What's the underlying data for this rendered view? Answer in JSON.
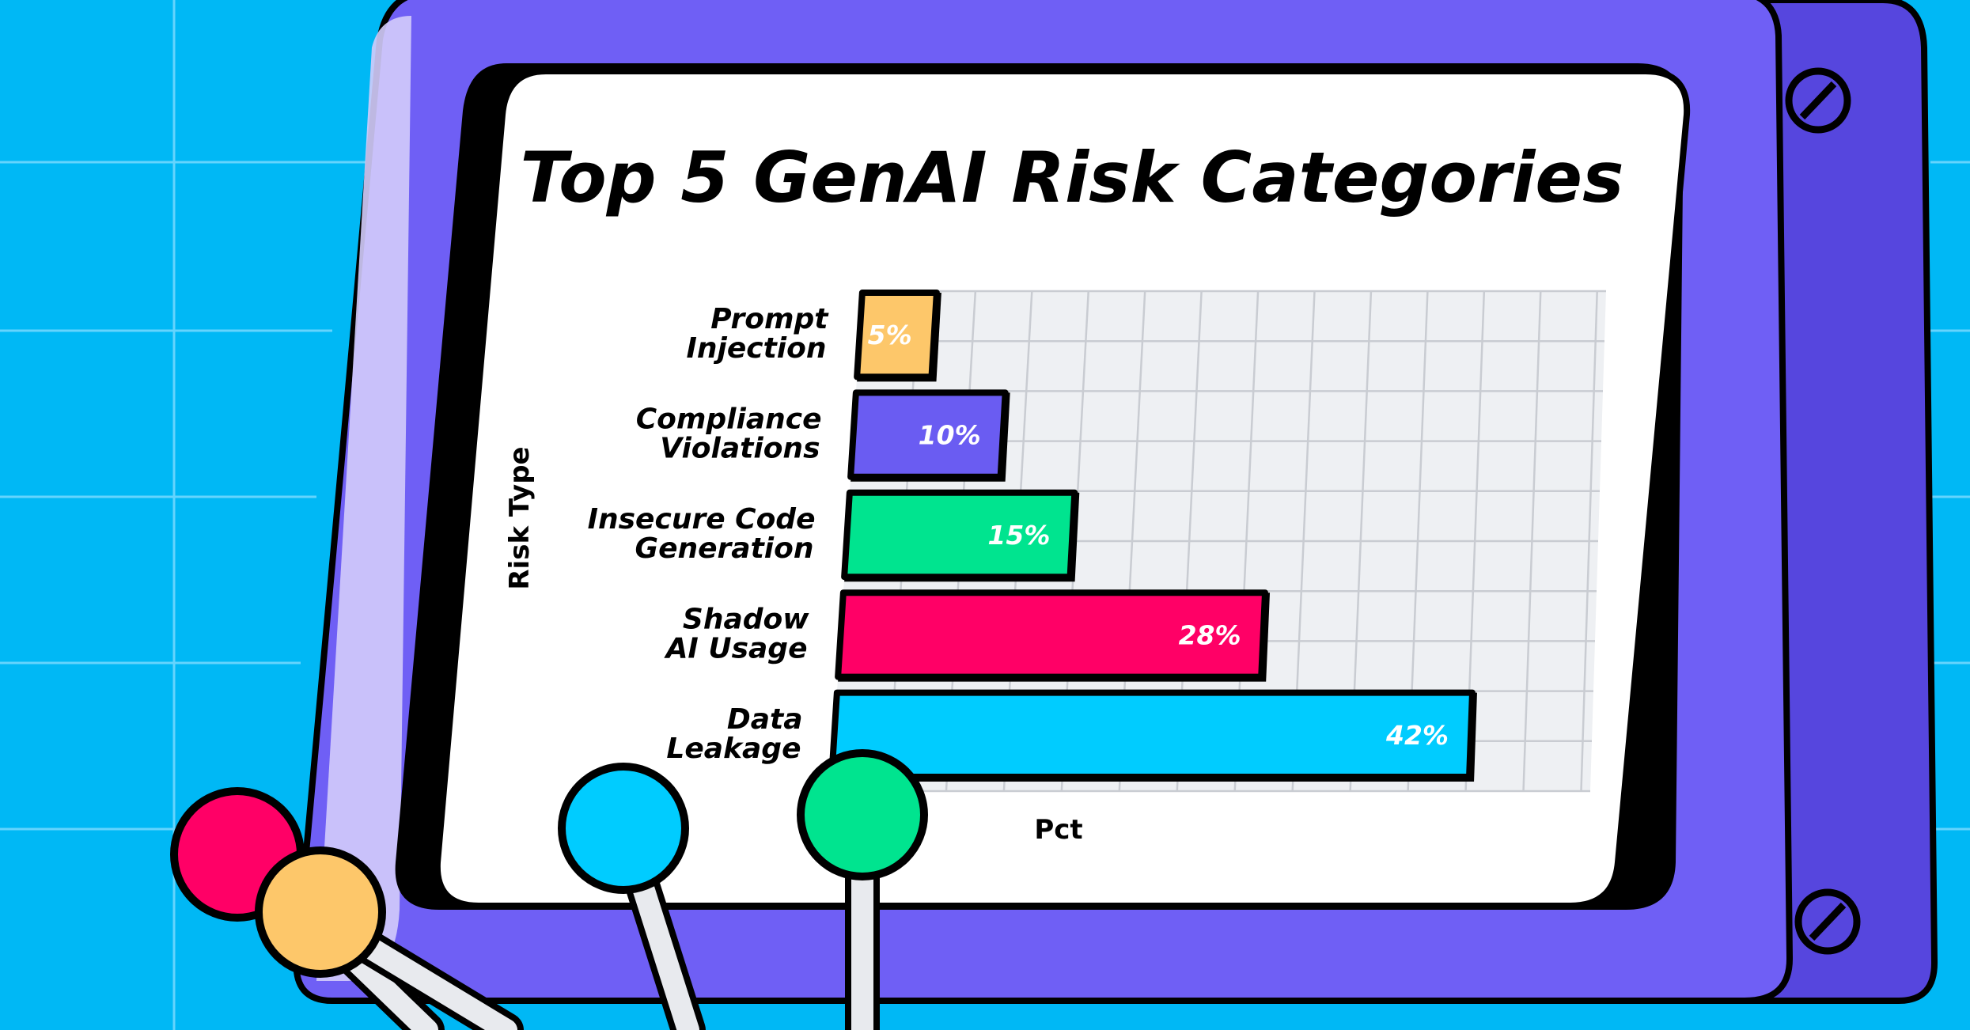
{
  "chart_data": {
    "type": "bar",
    "orientation": "horizontal",
    "title": "Top 5 GenAI Risk Categories",
    "xlabel": "Pct",
    "ylabel": "Risk Type",
    "xlim": [
      0,
      50
    ],
    "grid": true,
    "categories": [
      [
        "Prompt",
        "Injection"
      ],
      [
        "Compliance",
        "Violations"
      ],
      [
        "Insecure Code",
        "Generation"
      ],
      [
        "Shadow",
        "AI Usage"
      ],
      [
        "Data",
        "Leakage"
      ]
    ],
    "values": [
      5,
      10,
      15,
      28,
      42
    ],
    "value_labels": [
      "5%",
      "10%",
      "15%",
      "28%",
      "42%"
    ],
    "bar_colors": [
      "#fdc76a",
      "#6a5cf2",
      "#00e48f",
      "#ff0066",
      "#00ccff"
    ]
  },
  "colors": {
    "background": "#00b8f5",
    "monitor": "#6f5ff5",
    "monitor_side": "#5646de",
    "screen": "#ffffff",
    "knob_colors": [
      "#ff0066",
      "#fdc76a",
      "#00ccff",
      "#00e48f"
    ]
  }
}
